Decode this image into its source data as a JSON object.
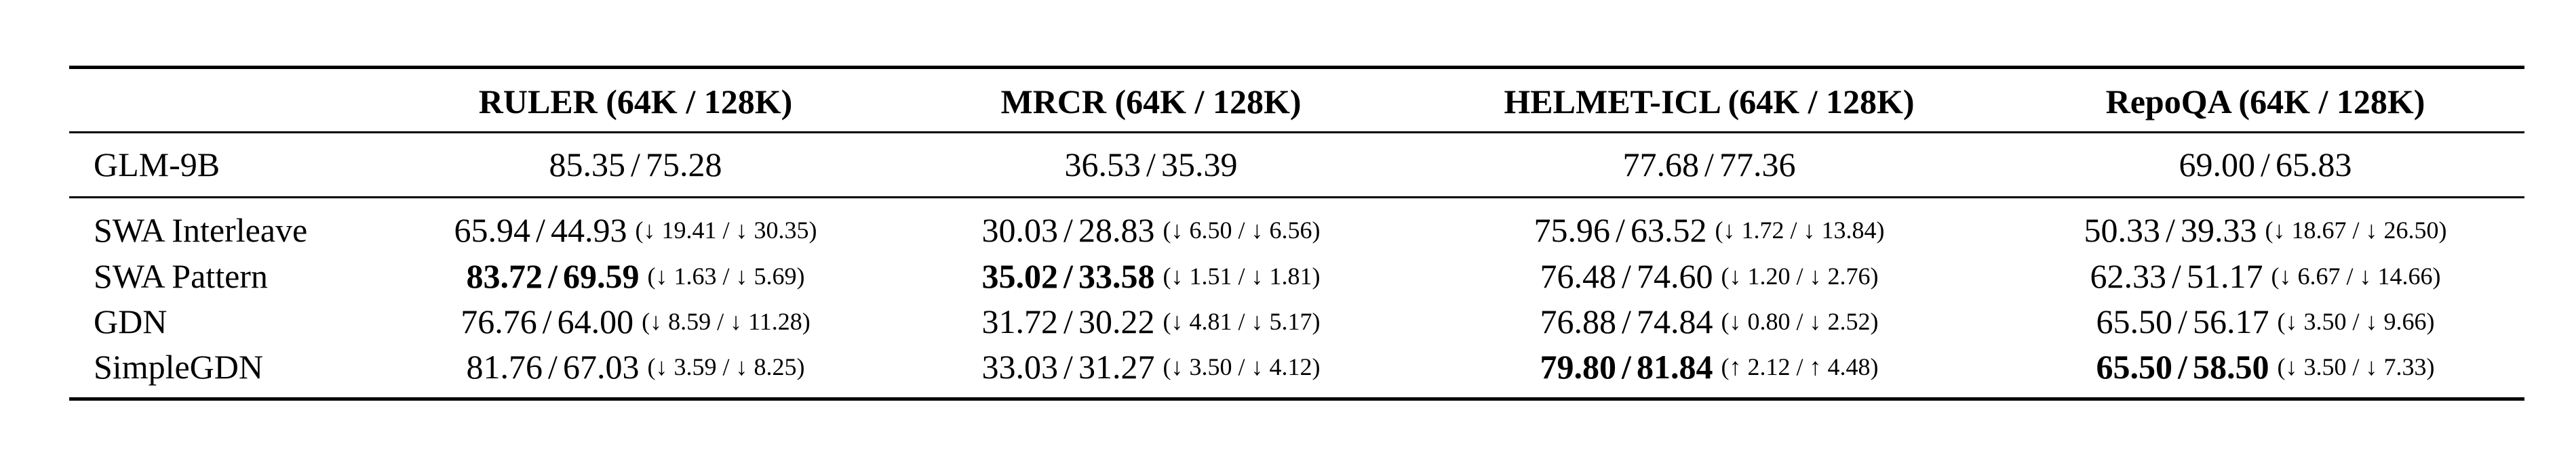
{
  "columns": [
    "",
    "RULER (64K / 128K)",
    "MRCR (64K / 128K)",
    "HELMET-ICL (64K / 128K)",
    "RepoQA (64K / 128K)"
  ],
  "baseline": {
    "model": "GLM-9B",
    "cells": [
      {
        "v64": "85.35",
        "v128": "75.28"
      },
      {
        "v64": "36.53",
        "v128": "35.39"
      },
      {
        "v64": "77.68",
        "v128": "77.36"
      },
      {
        "v64": "69.00",
        "v128": "65.83"
      }
    ]
  },
  "rows": [
    {
      "model": "SWA Interleave",
      "cells": [
        {
          "v64": "65.94",
          "v128": "44.93",
          "bold": false,
          "delta": "(↓ 19.41 / ↓ 30.35)"
        },
        {
          "v64": "30.03",
          "v128": "28.83",
          "bold": false,
          "delta": "(↓ 6.50 / ↓ 6.56)"
        },
        {
          "v64": "75.96",
          "v128": "63.52",
          "bold": false,
          "delta": "(↓ 1.72 / ↓ 13.84)"
        },
        {
          "v64": "50.33",
          "v128": "39.33",
          "bold": false,
          "delta": "(↓ 18.67 / ↓ 26.50)"
        }
      ]
    },
    {
      "model": "SWA Pattern",
      "cells": [
        {
          "v64": "83.72",
          "v128": "69.59",
          "bold": true,
          "delta": "(↓ 1.63 / ↓ 5.69)"
        },
        {
          "v64": "35.02",
          "v128": "33.58",
          "bold": true,
          "delta": "(↓ 1.51 / ↓ 1.81)"
        },
        {
          "v64": "76.48",
          "v128": "74.60",
          "bold": false,
          "delta": "(↓ 1.20 / ↓ 2.76)"
        },
        {
          "v64": "62.33",
          "v128": "51.17",
          "bold": false,
          "delta": "(↓ 6.67 / ↓ 14.66)"
        }
      ]
    },
    {
      "model": "GDN",
      "cells": [
        {
          "v64": "76.76",
          "v128": "64.00",
          "bold": false,
          "delta": "(↓ 8.59 / ↓ 11.28)"
        },
        {
          "v64": "31.72",
          "v128": "30.22",
          "bold": false,
          "delta": "(↓ 4.81 / ↓ 5.17)"
        },
        {
          "v64": "76.88",
          "v128": "74.84",
          "bold": false,
          "delta": "(↓ 0.80 / ↓ 2.52)"
        },
        {
          "v64": "65.50",
          "v128": "56.17",
          "bold": false,
          "delta": "(↓ 3.50 / ↓ 9.66)"
        }
      ]
    },
    {
      "model": "SimpleGDN",
      "cells": [
        {
          "v64": "81.76",
          "v128": "67.03",
          "bold": false,
          "delta": "(↓ 3.59 / ↓ 8.25)"
        },
        {
          "v64": "33.03",
          "v128": "31.27",
          "bold": false,
          "delta": "(↓ 3.50 / ↓ 4.12)"
        },
        {
          "v64": "79.80",
          "v128": "81.84",
          "bold": true,
          "delta": "(↑ 2.12 / ↑ 4.48)"
        },
        {
          "v64": "65.50",
          "v128": "58.50",
          "bold": true,
          "delta": "(↓ 3.50 / ↓ 7.33)"
        }
      ]
    }
  ]
}
